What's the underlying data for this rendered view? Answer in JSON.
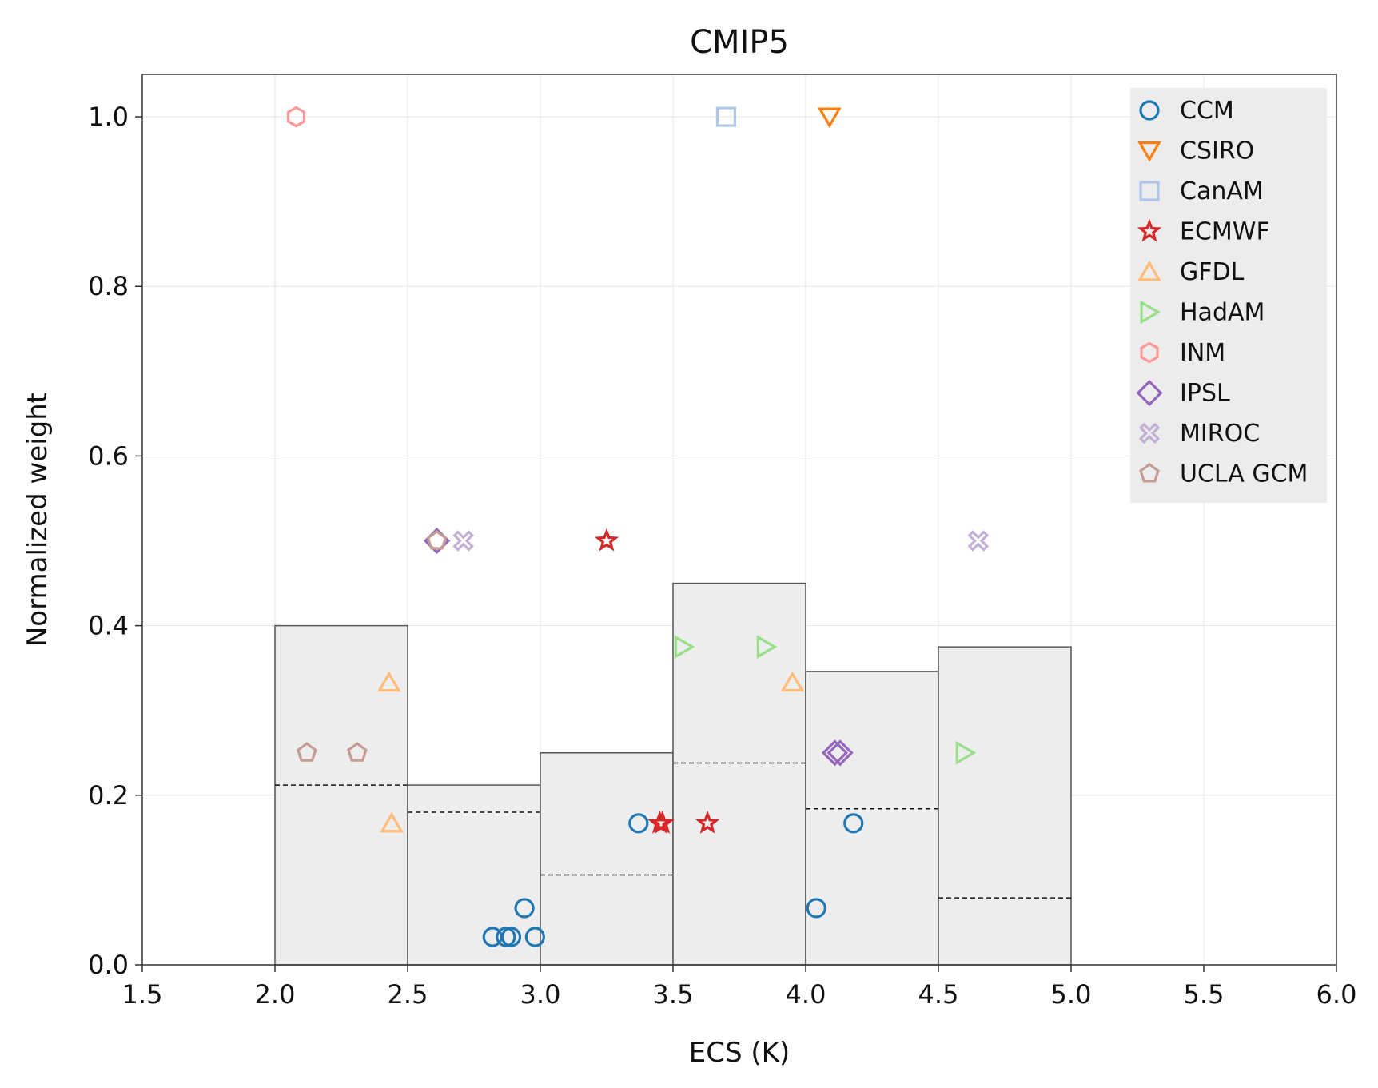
{
  "chart_data": {
    "type": "scatter+histogram",
    "title": "CMIP5",
    "xlabel": "ECS (K)",
    "ylabel": "Normalized weight",
    "xlim": [
      1.5,
      6.0
    ],
    "ylim": [
      0.0,
      1.05
    ],
    "xticks": [
      1.5,
      2.0,
      2.5,
      3.0,
      3.5,
      4.0,
      4.5,
      5.0,
      5.5,
      6.0
    ],
    "xtick_labels": [
      "1.5",
      "2.0",
      "2.5",
      "3.0",
      "3.5",
      "4.0",
      "4.5",
      "5.0",
      "5.5",
      "6.0"
    ],
    "yticks": [
      0.0,
      0.2,
      0.4,
      0.6,
      0.8,
      1.0
    ],
    "ytick_labels": [
      "0.0",
      "0.2",
      "0.4",
      "0.6",
      "0.8",
      "1.0"
    ],
    "grid": true,
    "legend_position": "top-right",
    "histogram": {
      "bins": [
        {
          "x0": 2.0,
          "x1": 2.5,
          "height": 0.4,
          "dashed": 0.212
        },
        {
          "x0": 2.5,
          "x1": 3.0,
          "height": 0.212,
          "dashed": 0.18
        },
        {
          "x0": 3.0,
          "x1": 3.5,
          "height": 0.25,
          "dashed": 0.106
        },
        {
          "x0": 3.5,
          "x1": 4.0,
          "height": 0.45,
          "dashed": 0.238
        },
        {
          "x0": 4.0,
          "x1": 4.5,
          "height": 0.346,
          "dashed": 0.184
        },
        {
          "x0": 4.5,
          "x1": 5.0,
          "height": 0.375,
          "dashed": 0.079
        }
      ],
      "fill": "#ededed",
      "edge": "#555555"
    },
    "series": [
      {
        "name": "CCM",
        "marker": "circle",
        "color": "#1f77b4",
        "points": [
          [
            2.82,
            0.033
          ],
          [
            2.87,
            0.033
          ],
          [
            2.89,
            0.033
          ],
          [
            2.98,
            0.033
          ],
          [
            2.94,
            0.067
          ],
          [
            3.37,
            0.167
          ],
          [
            4.04,
            0.067
          ],
          [
            4.18,
            0.167
          ]
        ]
      },
      {
        "name": "CSIRO",
        "marker": "triangle-down",
        "color": "#ff7f0e",
        "points": [
          [
            4.09,
            1.0
          ]
        ]
      },
      {
        "name": "CanAM",
        "marker": "square",
        "color": "#aec7e8",
        "points": [
          [
            3.7,
            1.0
          ]
        ]
      },
      {
        "name": "ECMWF",
        "marker": "star",
        "color": "#d62728",
        "points": [
          [
            3.25,
            0.5
          ],
          [
            3.45,
            0.167
          ],
          [
            3.46,
            0.167
          ],
          [
            3.63,
            0.167
          ]
        ]
      },
      {
        "name": "GFDL",
        "marker": "triangle-up",
        "color": "#ffbb78",
        "points": [
          [
            2.43,
            0.333
          ],
          [
            2.44,
            0.167
          ],
          [
            3.95,
            0.333
          ]
        ]
      },
      {
        "name": "HadAM",
        "marker": "triangle-right",
        "color": "#98df8a",
        "points": [
          [
            3.54,
            0.375
          ],
          [
            3.85,
            0.375
          ],
          [
            4.6,
            0.25
          ]
        ]
      },
      {
        "name": "INM",
        "marker": "hexagon",
        "color": "#ff9896",
        "points": [
          [
            2.08,
            1.0
          ]
        ]
      },
      {
        "name": "IPSL",
        "marker": "diamond",
        "color": "#9467bd",
        "points": [
          [
            2.61,
            0.5
          ],
          [
            4.11,
            0.25
          ],
          [
            4.13,
            0.25
          ]
        ]
      },
      {
        "name": "MIROC",
        "marker": "x-thick",
        "color": "#c5b0d5",
        "points": [
          [
            2.71,
            0.5
          ],
          [
            4.65,
            0.5
          ]
        ]
      },
      {
        "name": "UCLA GCM",
        "marker": "pentagon",
        "color": "#c49c94",
        "points": [
          [
            2.12,
            0.25
          ],
          [
            2.31,
            0.25
          ],
          [
            2.61,
            0.5
          ]
        ]
      }
    ]
  }
}
